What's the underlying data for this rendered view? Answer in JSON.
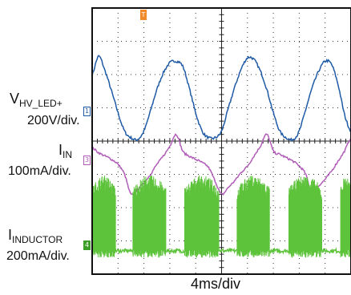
{
  "chart_data": {
    "type": "line",
    "title": "",
    "xlabel": "4ms/div",
    "grid": true,
    "grid_divisions": {
      "x": 10,
      "y": 8
    },
    "x_range_ms": [
      0,
      40
    ],
    "y_range_div": [
      -4,
      4
    ],
    "trigger_marker": "T",
    "series": [
      {
        "name": "VHV_LED+",
        "label_main": "V",
        "label_sub": "HV_LED+",
        "scale": "200V/div.",
        "channel": "1",
        "color": "#1f5aa6",
        "baseline_div": -0.1,
        "x_ms": [
          0,
          1,
          2,
          3,
          4,
          5,
          6,
          7,
          8,
          9,
          10,
          11,
          12,
          13,
          14,
          15,
          16,
          17,
          18,
          19,
          20,
          21,
          22,
          23,
          24,
          25,
          26,
          27,
          28,
          29,
          30,
          31,
          32,
          33,
          34,
          35,
          36,
          37,
          38,
          39,
          40
        ],
        "y_div": [
          2.0,
          2.55,
          2.1,
          1.5,
          0.85,
          0.3,
          0.1,
          0.05,
          0.3,
          0.9,
          1.55,
          2.05,
          2.35,
          2.4,
          2.25,
          1.6,
          0.85,
          0.3,
          0.1,
          0.1,
          0.3,
          0.95,
          1.6,
          2.15,
          2.5,
          2.45,
          2.1,
          1.55,
          0.85,
          0.3,
          0.1,
          0.05,
          0.3,
          0.95,
          1.6,
          2.1,
          2.4,
          2.3,
          1.7,
          0.8,
          0.3
        ]
      },
      {
        "name": "IIN",
        "label_main": "I",
        "label_sub": "IN",
        "scale": "100mA/div.",
        "channel": "3",
        "color": "#b05cb8",
        "baseline_div": -1.5,
        "x_ms": [
          0,
          1,
          2,
          3,
          4,
          5,
          6,
          7,
          8,
          9,
          10,
          11,
          12,
          13,
          14,
          15,
          16,
          17,
          18,
          19,
          20,
          21,
          22,
          23,
          24,
          25,
          26,
          27,
          28,
          29,
          30,
          31,
          32,
          33,
          34,
          35,
          36,
          37,
          38,
          39,
          40
        ],
        "y_div": [
          -0.2,
          -0.35,
          -0.45,
          -0.55,
          -0.7,
          -1.0,
          -1.6,
          -1.45,
          -1.25,
          -1.0,
          -0.7,
          -0.45,
          -0.15,
          0.2,
          -0.3,
          -0.45,
          -0.55,
          -0.65,
          -0.8,
          -1.2,
          -1.6,
          -1.4,
          -1.2,
          -0.95,
          -0.75,
          -0.45,
          -0.15,
          0.2,
          -0.3,
          -0.4,
          -0.5,
          -0.6,
          -0.75,
          -1.0,
          -1.6,
          -1.35,
          -1.15,
          -0.9,
          -0.6,
          -0.3,
          0.1
        ]
      },
      {
        "name": "IINDUCTOR",
        "label_main": "I",
        "label_sub": "INDUCTOR",
        "scale": "200mA/div.",
        "channel": "4",
        "color": "#5cc33a",
        "baseline_div": -3.3,
        "burst_ms": [
          [
            0,
            3.6
          ],
          [
            6.3,
            11.4
          ],
          [
            14.3,
            19.6
          ],
          [
            22.4,
            27.4
          ],
          [
            30.4,
            35.5
          ],
          [
            38.4,
            40
          ]
        ],
        "y_low_div": -3.5,
        "y_high_div": -1.6
      }
    ]
  }
}
